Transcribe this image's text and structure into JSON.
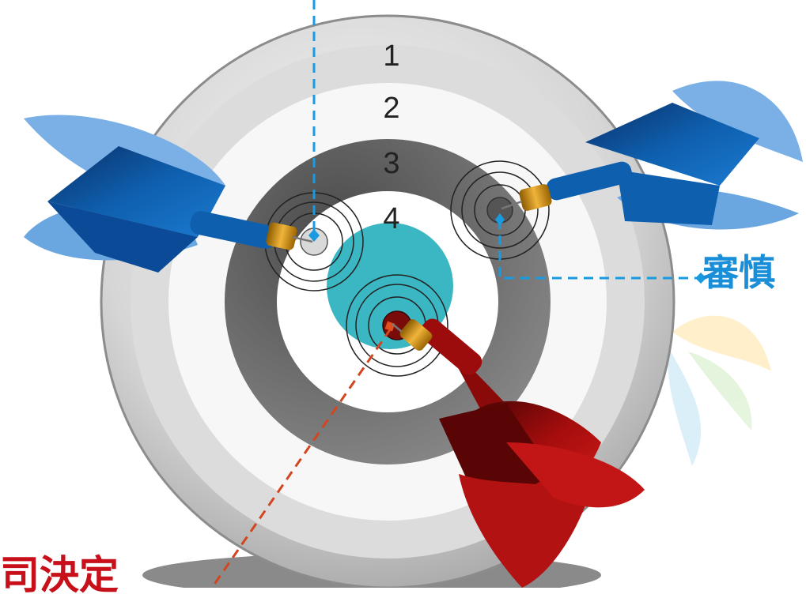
{
  "target": {
    "ring_numbers": [
      "1",
      "2",
      "3",
      "4"
    ]
  },
  "captions": {
    "blue": "審慎",
    "red": "司決定"
  },
  "colors": {
    "blue_dart": "#0e5fae",
    "red_dart": "#a50d0d",
    "bullseye": "#3ab7c3",
    "blue_line": "#1a9ae0",
    "red_line": "#d2451e"
  }
}
